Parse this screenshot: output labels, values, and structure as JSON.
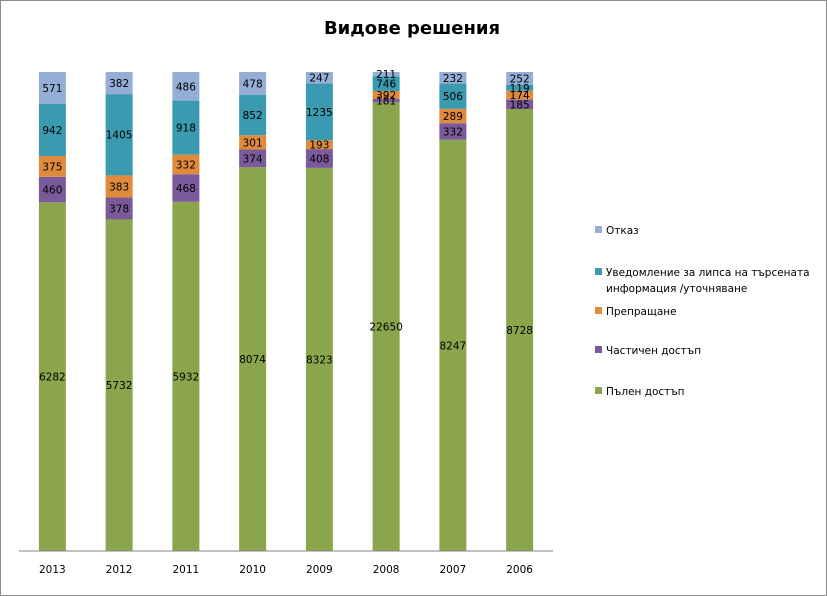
{
  "chart_data": {
    "type": "bar",
    "stacked": true,
    "percent_stacked": true,
    "title": "Видове решения",
    "xlabel": "",
    "ylabel": "",
    "categories": [
      "2013",
      "2012",
      "2011",
      "2010",
      "2009",
      "2008",
      "2007",
      "2006"
    ],
    "series": [
      {
        "name": "Пълен достъп",
        "color": "#8aa54b",
        "values": [
          6282,
          5732,
          5932,
          8074,
          8323,
          22650,
          8247,
          8728
        ]
      },
      {
        "name": "Частичен достъп",
        "color": "#7a5a9a",
        "values": [
          460,
          378,
          468,
          374,
          408,
          181,
          332,
          185
        ]
      },
      {
        "name": "Препращане",
        "color": "#e08a3c",
        "values": [
          375,
          383,
          332,
          301,
          193,
          392,
          289,
          174
        ]
      },
      {
        "name": "Уведомление за липса на търсената информация /уточняване",
        "color": "#3a9aaf",
        "values": [
          942,
          1405,
          918,
          852,
          1235,
          746,
          506,
          119
        ]
      },
      {
        "name": "Отказ",
        "color": "#95aed6",
        "values": [
          571,
          382,
          486,
          478,
          247,
          211,
          232,
          252
        ]
      }
    ],
    "legend_order": [
      "Отказ",
      "Уведомление за липса на търсената информация /уточняване",
      "Препращане",
      "Частичен достъп",
      "Пълен достъп"
    ],
    "legend_position": "right",
    "grid": false
  }
}
